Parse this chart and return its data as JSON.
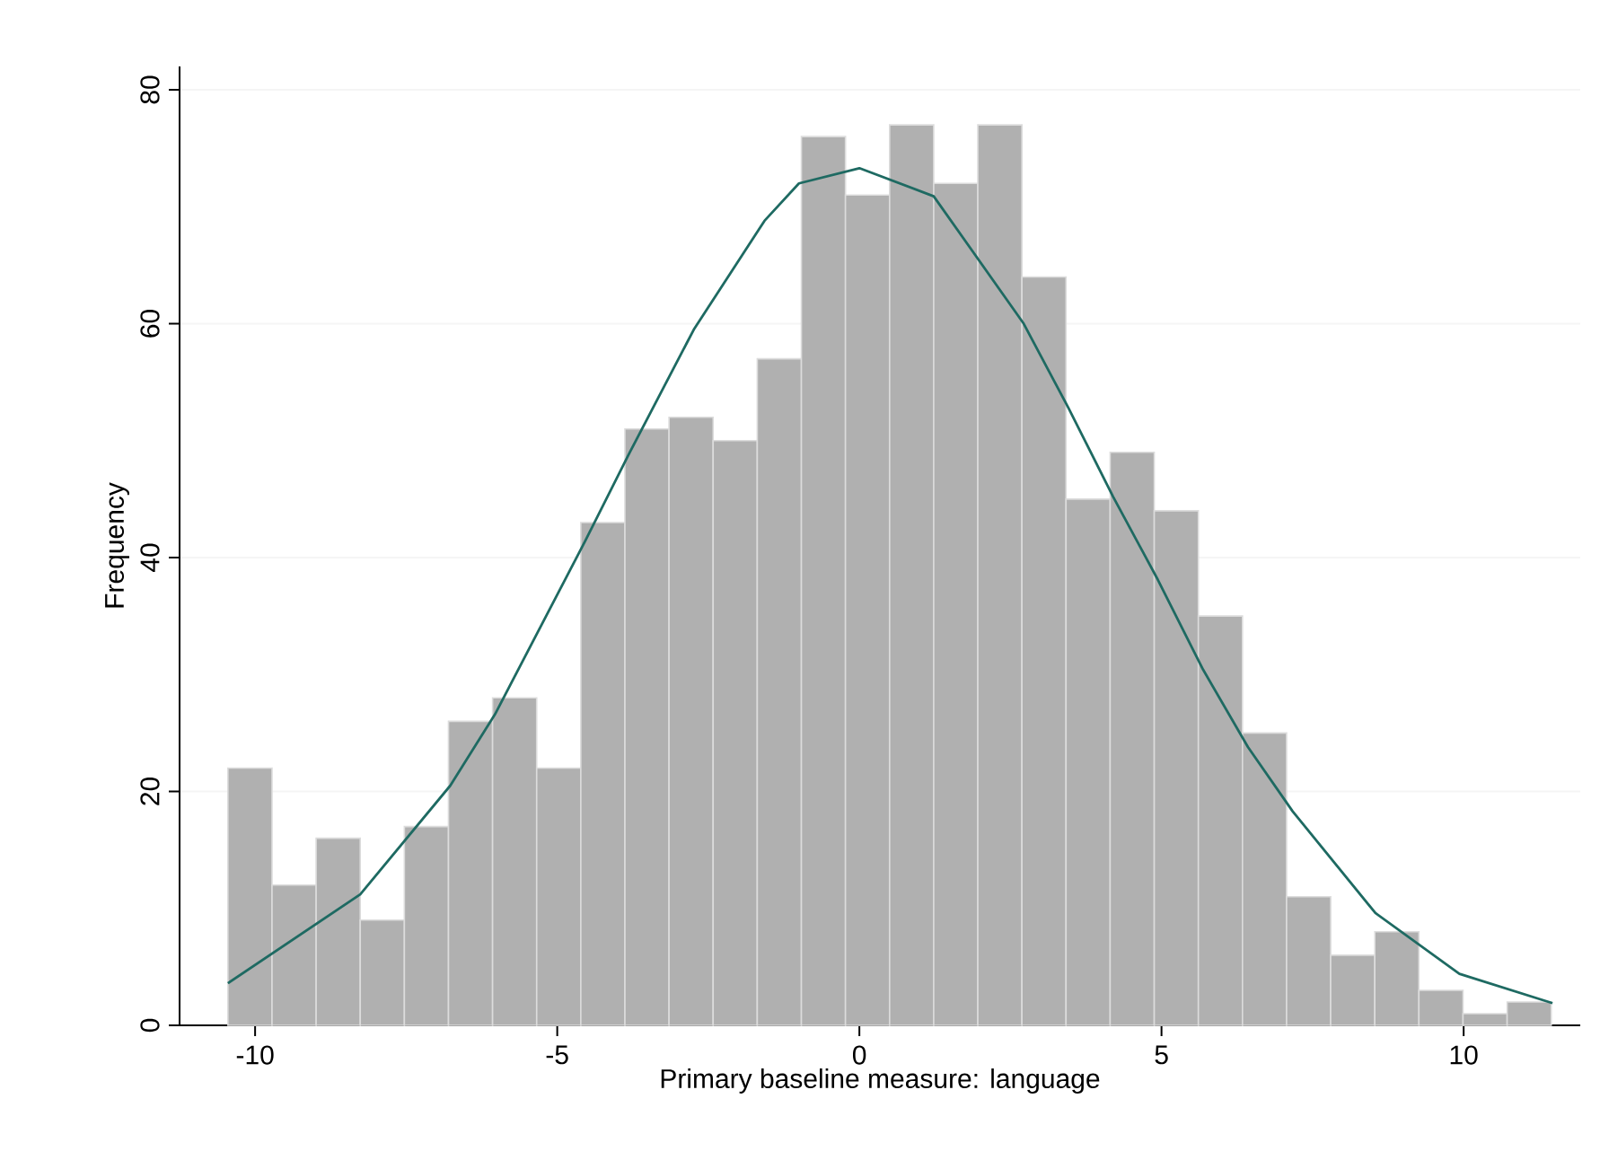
{
  "chart_data": {
    "type": "histogram",
    "xlabel": "Primary baseline measure: language",
    "ylabel": "Frequency",
    "bins": [
      -10.45,
      -9.72,
      -8.99,
      -8.26,
      -7.53,
      -6.8,
      -6.07,
      -5.34,
      -4.61,
      -3.88,
      -3.15,
      -2.42,
      -1.69,
      -0.96,
      -0.23,
      0.5,
      1.23,
      1.96,
      2.69,
      3.42,
      4.15,
      4.88,
      5.61,
      6.34,
      7.07,
      7.8,
      8.53,
      9.26,
      9.99,
      10.72,
      11.45
    ],
    "values": [
      22,
      12,
      16,
      9,
      17,
      26,
      28,
      22,
      43,
      51,
      52,
      50,
      57,
      76,
      71,
      77,
      72,
      77,
      64,
      45,
      49,
      44,
      35,
      25,
      11,
      6,
      8,
      3,
      1,
      2
    ],
    "color": "#b0b0b0",
    "series": [
      {
        "type": "line",
        "color": "#1e6a62",
        "x": [
          -10.45,
          -8.26,
          -6.77,
          -6.03,
          -4.54,
          -3.8,
          -2.74,
          -1.57,
          -1.0,
          0,
          1.23,
          2.72,
          3.46,
          4.2,
          4.94,
          5.69,
          6.43,
          7.17,
          8.54,
          9.93,
          11.47
        ],
        "values": [
          3.6,
          11.2,
          20.5,
          26.6,
          41.4,
          49.0,
          59.5,
          68.8,
          72,
          73.3,
          70.9,
          60.0,
          52.8,
          45.2,
          38.1,
          30.4,
          23.8,
          18.3,
          9.6,
          4.4,
          1.9
        ]
      }
    ],
    "xlim": [
      -11.25,
      11.93
    ],
    "ylim": [
      0,
      82
    ],
    "xticks": [
      -10,
      -5,
      0,
      5,
      10
    ],
    "yticks": [
      0,
      20,
      40,
      60,
      80
    ],
    "grid": "y"
  }
}
